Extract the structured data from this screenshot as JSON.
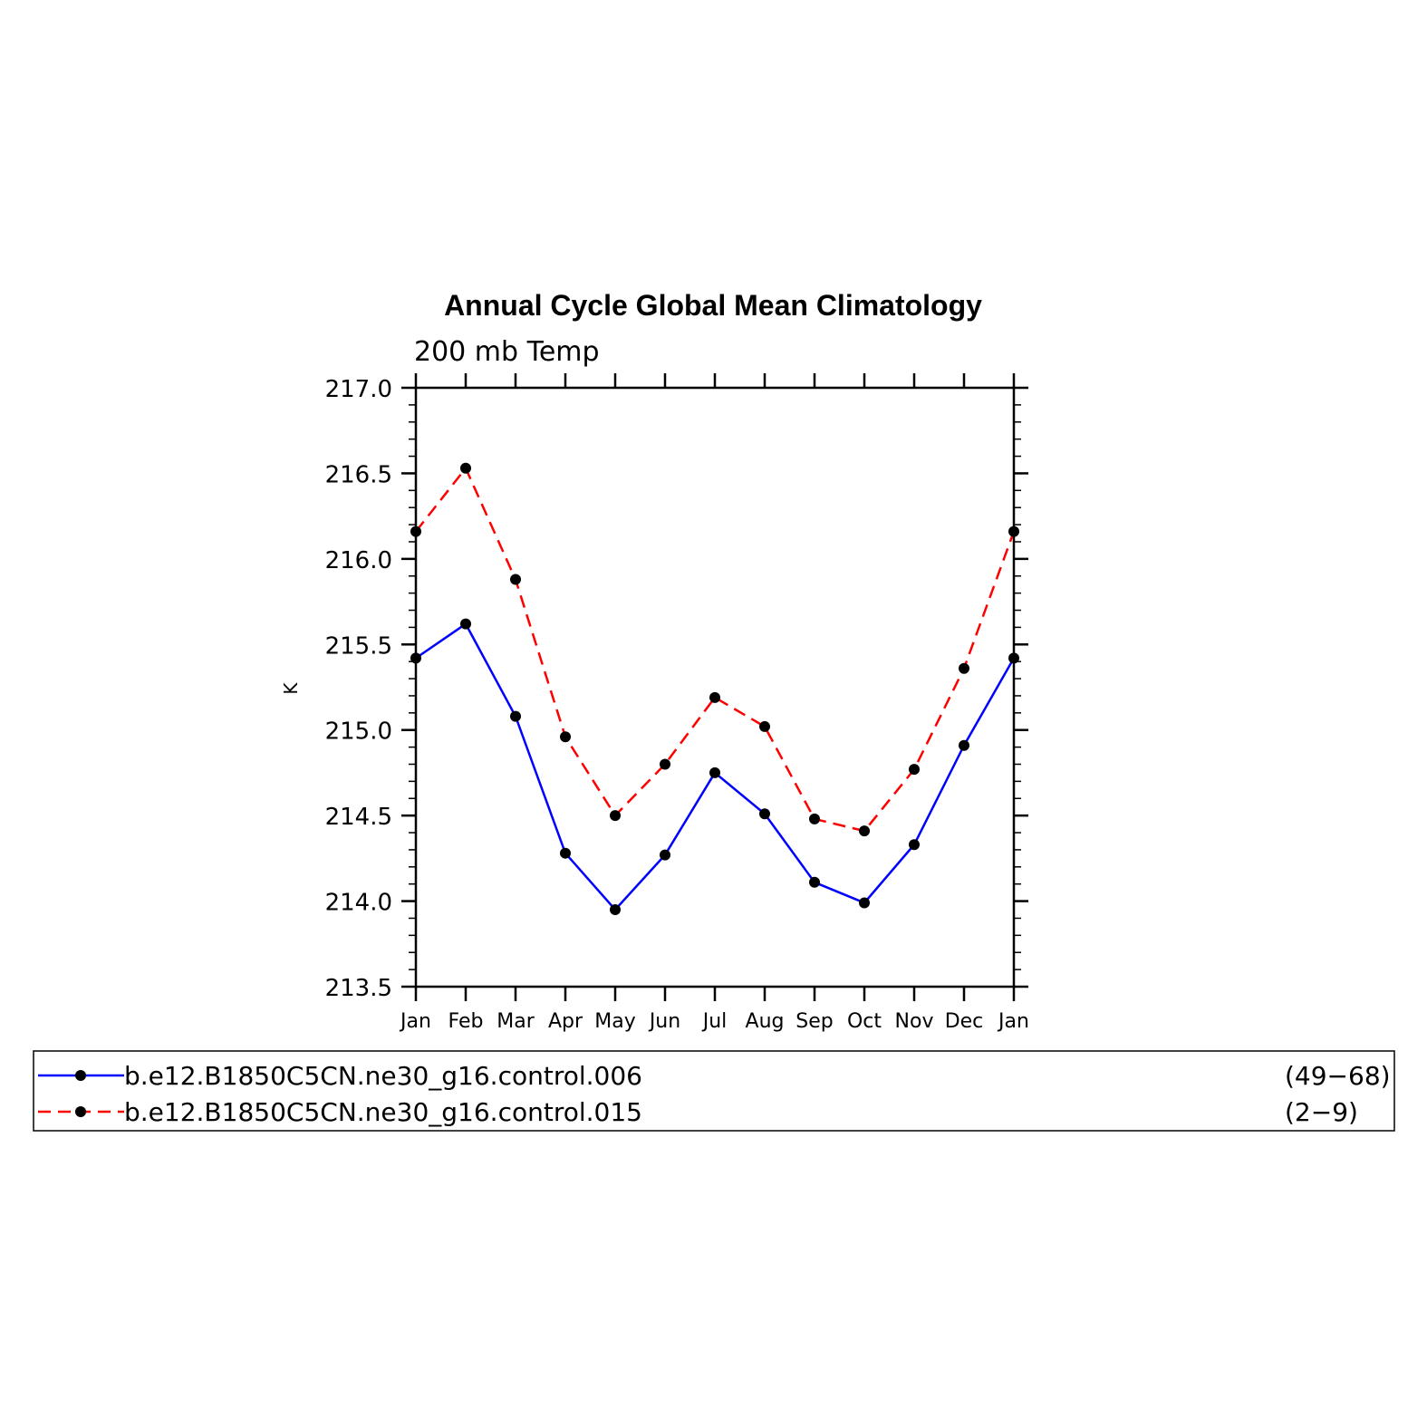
{
  "chart_data": {
    "type": "line",
    "title": "Annual Cycle Global Mean Climatology",
    "subtitle": "200 mb Temp",
    "xlabel": "",
    "ylabel": "K",
    "categories": [
      "Jan",
      "Feb",
      "Mar",
      "Apr",
      "May",
      "Jun",
      "Jul",
      "Aug",
      "Sep",
      "Oct",
      "Nov",
      "Dec",
      "Jan"
    ],
    "ylim": [
      213.5,
      217.0
    ],
    "yticks": [
      "213.5",
      "214.0",
      "214.5",
      "215.0",
      "215.5",
      "216.0",
      "216.5",
      "217.0"
    ],
    "grid": false,
    "legend_placement": "bottom",
    "series": [
      {
        "name": "b.e12.B1850C5CN.ne30_g16.control.006",
        "years": "(49−68)",
        "color": "#0000ff",
        "dash": "solid",
        "marker": "filled-circle",
        "values": [
          215.42,
          215.62,
          215.08,
          214.28,
          213.95,
          214.27,
          214.75,
          214.51,
          214.11,
          213.99,
          214.33,
          214.91,
          215.42
        ]
      },
      {
        "name": "b.e12.B1850C5CN.ne30_g16.control.015",
        "years": "(2−9)",
        "color": "#ff0000",
        "dash": "dashed",
        "marker": "filled-circle",
        "values": [
          216.16,
          216.53,
          215.88,
          214.96,
          214.5,
          214.8,
          215.19,
          215.02,
          214.48,
          214.41,
          214.77,
          215.36,
          216.16
        ]
      }
    ]
  }
}
